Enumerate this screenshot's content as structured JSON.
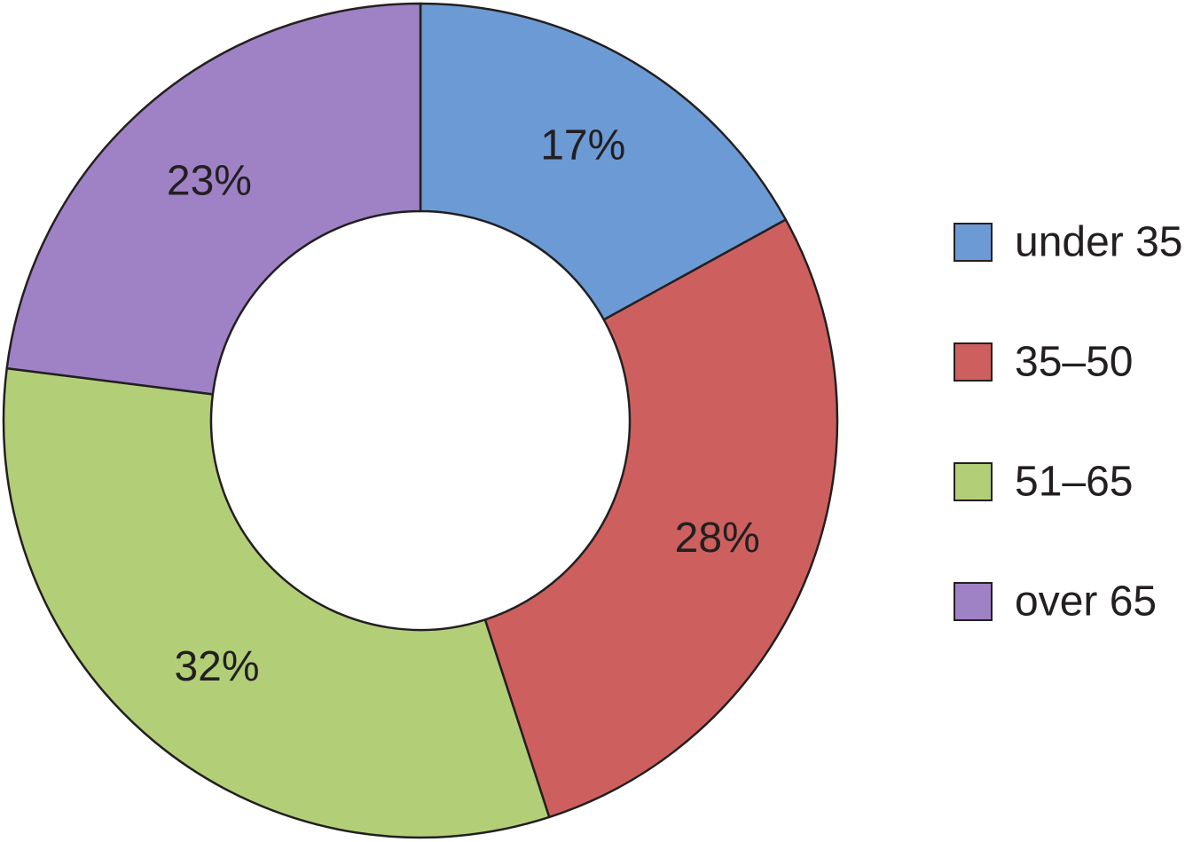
{
  "chart_data": {
    "type": "pie",
    "donut": true,
    "title": "",
    "categories": [
      "under 35",
      "35–50",
      "51–65",
      "over 65"
    ],
    "values": [
      17,
      28,
      32,
      23
    ],
    "labels": [
      "17%",
      "28%",
      "32%",
      "23%"
    ],
    "colors": [
      "#6c9ad4",
      "#cd605e",
      "#b2cf78",
      "#9f82c5"
    ],
    "start_angle": "12 o'clock, clockwise",
    "legend_position": "right"
  }
}
